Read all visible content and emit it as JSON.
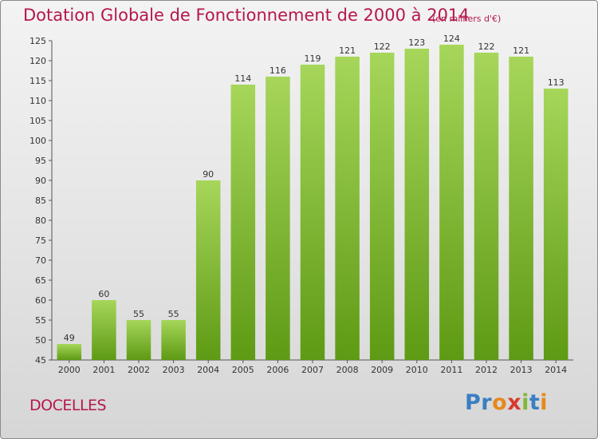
{
  "title": "Dotation Globale de Fonctionnement de 2000 à 2014",
  "subtitle": "(en milliers d'€)",
  "commune": "DOCELLES",
  "logo": {
    "text": "Proxiti",
    "letters": [
      {
        "ch": "P",
        "color": "#3a7fc2"
      },
      {
        "ch": "r",
        "color": "#3a7fc2"
      },
      {
        "ch": "o",
        "color": "#e8881c"
      },
      {
        "ch": "x",
        "color": "#d83a2e"
      },
      {
        "ch": "i",
        "color": "#7fb83a"
      },
      {
        "ch": "t",
        "color": "#3a7fc2"
      },
      {
        "ch": "i",
        "color": "#e8881c"
      }
    ]
  },
  "colors": {
    "title": "#b5174f",
    "bar_light": "#a6d65a",
    "bar_dark": "#5e9a14"
  },
  "chart_data": {
    "type": "bar",
    "categories": [
      "2000",
      "2001",
      "2002",
      "2003",
      "2004",
      "2005",
      "2006",
      "2007",
      "2008",
      "2009",
      "2010",
      "2011",
      "2012",
      "2013",
      "2014"
    ],
    "values": [
      49,
      60,
      55,
      55,
      90,
      114,
      116,
      119,
      121,
      122,
      123,
      124,
      122,
      121,
      113
    ],
    "ylim": [
      45,
      125
    ],
    "yticks": [
      45,
      50,
      55,
      60,
      65,
      70,
      75,
      80,
      85,
      90,
      95,
      100,
      105,
      110,
      115,
      120,
      125
    ],
    "grid": false,
    "data_labels": true
  }
}
